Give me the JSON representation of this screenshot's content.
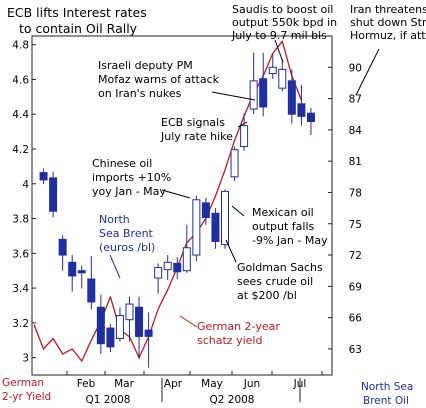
{
  "chart_data": {
    "type": "line",
    "title": "ECB lifts Interest rates to contain Oil Rally",
    "x_tick_labels": [
      "Feb",
      "Mar",
      "Apr",
      "May",
      "Jun",
      "Jul"
    ],
    "quarter_labels": [
      "Q1 2008",
      "Q2 2008"
    ],
    "left_axis": {
      "label": [
        "German",
        "2-yr Yield"
      ],
      "ylim": [
        2.9,
        4.85
      ],
      "ticks": [
        "4.8",
        "4.6",
        "4.4",
        "4.2",
        "4",
        "3.8",
        "3.6",
        "3.4",
        "3.2",
        "3"
      ]
    },
    "right_axis": {
      "label": [
        "North Sea",
        "Brent Oil"
      ],
      "ylim": [
        60.5,
        93.0
      ],
      "ticks": [
        "90",
        "87",
        "84",
        "81",
        "78",
        "75",
        "72",
        "69",
        "66",
        "63"
      ]
    },
    "series": [
      {
        "name": "North Sea Brent (euros /bl)",
        "axis": "right",
        "style": "candlestick",
        "candles": [
          {
            "x": 1,
            "o": 79.9,
            "c": 79.2,
            "h": 80.3,
            "l": 78.8
          },
          {
            "x": 2,
            "o": 79.4,
            "c": 76.2,
            "h": 80.0,
            "l": 75.6
          },
          {
            "x": 3,
            "o": 73.5,
            "c": 72.0,
            "h": 73.9,
            "l": 70.5
          },
          {
            "x": 4,
            "o": 71.3,
            "c": 70.0,
            "h": 72.0,
            "l": 68.5
          },
          {
            "x": 5,
            "o": 70.5,
            "c": 70.3,
            "h": 71.0,
            "l": 68.8
          },
          {
            "x": 6,
            "o": 69.7,
            "c": 67.5,
            "h": 71.9,
            "l": 66.8
          },
          {
            "x": 7,
            "o": 67.0,
            "c": 63.5,
            "h": 68.2,
            "l": 62.5
          },
          {
            "x": 8,
            "o": 65.0,
            "c": 63.2,
            "h": 65.4,
            "l": 62.7
          },
          {
            "x": 9,
            "o": 64.0,
            "c": 66.2,
            "h": 67.0,
            "l": 63.7
          },
          {
            "x": 10,
            "o": 65.8,
            "c": 67.3,
            "h": 68.0,
            "l": 63.7
          },
          {
            "x": 11,
            "o": 67.0,
            "c": 64.2,
            "h": 68.0,
            "l": 62.0
          },
          {
            "x": 12,
            "o": 64.8,
            "c": 64.2,
            "h": 66.5,
            "l": 61.2
          },
          {
            "x": 13,
            "o": 69.8,
            "c": 70.8,
            "h": 71.2,
            "l": 68.3
          },
          {
            "x": 14,
            "o": 70.6,
            "c": 71.3,
            "h": 72.0,
            "l": 69.6
          },
          {
            "x": 15,
            "o": 71.2,
            "c": 70.4,
            "h": 71.8,
            "l": 69.7
          },
          {
            "x": 16,
            "o": 70.5,
            "c": 72.7,
            "h": 74.9,
            "l": 70.3
          },
          {
            "x": 17,
            "o": 72.0,
            "c": 77.3,
            "h": 77.7,
            "l": 71.4
          },
          {
            "x": 18,
            "o": 77.0,
            "c": 75.6,
            "h": 77.5,
            "l": 74.9
          },
          {
            "x": 19,
            "o": 76.0,
            "c": 73.3,
            "h": 76.5,
            "l": 72.6
          },
          {
            "x": 20,
            "o": 73.0,
            "c": 78.1,
            "h": 78.3,
            "l": 72.6
          },
          {
            "x": 21,
            "o": 79.5,
            "c": 82.1,
            "h": 82.4,
            "l": 79.1
          },
          {
            "x": 22,
            "o": 82.4,
            "c": 84.4,
            "h": 85.6,
            "l": 82.0
          },
          {
            "x": 23,
            "o": 86.0,
            "c": 88.7,
            "h": 91.4,
            "l": 85.5
          },
          {
            "x": 24,
            "o": 88.9,
            "c": 86.2,
            "h": 91.4,
            "l": 85.3
          },
          {
            "x": 25,
            "o": 89.4,
            "c": 90.0,
            "h": 91.2,
            "l": 88.9
          },
          {
            "x": 26,
            "o": 88.0,
            "c": 89.8,
            "h": 90.7,
            "l": 87.7
          },
          {
            "x": 27,
            "o": 88.7,
            "c": 85.5,
            "h": 89.8,
            "l": 84.6
          },
          {
            "x": 28,
            "o": 86.5,
            "c": 85.3,
            "h": 88.3,
            "l": 84.4
          },
          {
            "x": 29,
            "o": 85.6,
            "c": 84.8,
            "h": 86.1,
            "l": 83.5
          }
        ]
      },
      {
        "name": "German 2-year schatz yield",
        "axis": "left",
        "style": "line",
        "points": [
          [
            0,
            3.19
          ],
          [
            1,
            3.05
          ],
          [
            2,
            3.11
          ],
          [
            3,
            3.02
          ],
          [
            4,
            3.05
          ],
          [
            5,
            2.98
          ],
          [
            6,
            3.1
          ],
          [
            7,
            3.21
          ],
          [
            8,
            3.35
          ],
          [
            9,
            3.16
          ],
          [
            10,
            3.12
          ],
          [
            11,
            3.0
          ],
          [
            12,
            3.12
          ],
          [
            13,
            3.28
          ],
          [
            14,
            3.39
          ],
          [
            15,
            3.52
          ],
          [
            16,
            3.66
          ],
          [
            17,
            3.72
          ],
          [
            18,
            3.8
          ],
          [
            19,
            3.93
          ],
          [
            20,
            4.08
          ],
          [
            21,
            4.25
          ],
          [
            22,
            4.39
          ],
          [
            23,
            4.52
          ],
          [
            24,
            4.62
          ],
          [
            25,
            4.75
          ],
          [
            26,
            4.82
          ],
          [
            27,
            4.62
          ],
          [
            28,
            4.48
          ]
        ]
      }
    ],
    "annotations": [
      {
        "text": [
          "Saudis to boost oil",
          "output 550k bpd in",
          "July to 9.7 mil bls"
        ],
        "color": "black"
      },
      {
        "text": [
          "Iran threatens to",
          "shut down Strait of",
          "Hormuz, if attacked"
        ],
        "color": "black"
      },
      {
        "text": [
          "Israeli deputy PM",
          "Mofaz warns of attack",
          "on Iran's nukes"
        ],
        "color": "black"
      },
      {
        "text": [
          "ECB signals",
          "July rate hike"
        ],
        "color": "black"
      },
      {
        "text": [
          "Chinese oil",
          "imports +10%",
          "yoy Jan - May"
        ],
        "color": "black"
      },
      {
        "text": [
          "North",
          "Sea Brent",
          "(euros /bl)"
        ],
        "color": "blue"
      },
      {
        "text": [
          "Mexican oil",
          "output falls",
          "-9% Jan - May"
        ],
        "color": "black"
      },
      {
        "text": [
          "Goldman Sachs",
          "sees crude oil",
          "at $200 /bl"
        ],
        "color": "black"
      },
      {
        "text": [
          "German 2-year",
          "schatz yield"
        ],
        "color": "red"
      }
    ],
    "grid": false,
    "colors": {
      "candle": "#1f2f9f",
      "yield_line": "#c0191c",
      "axis": "#222222"
    }
  }
}
